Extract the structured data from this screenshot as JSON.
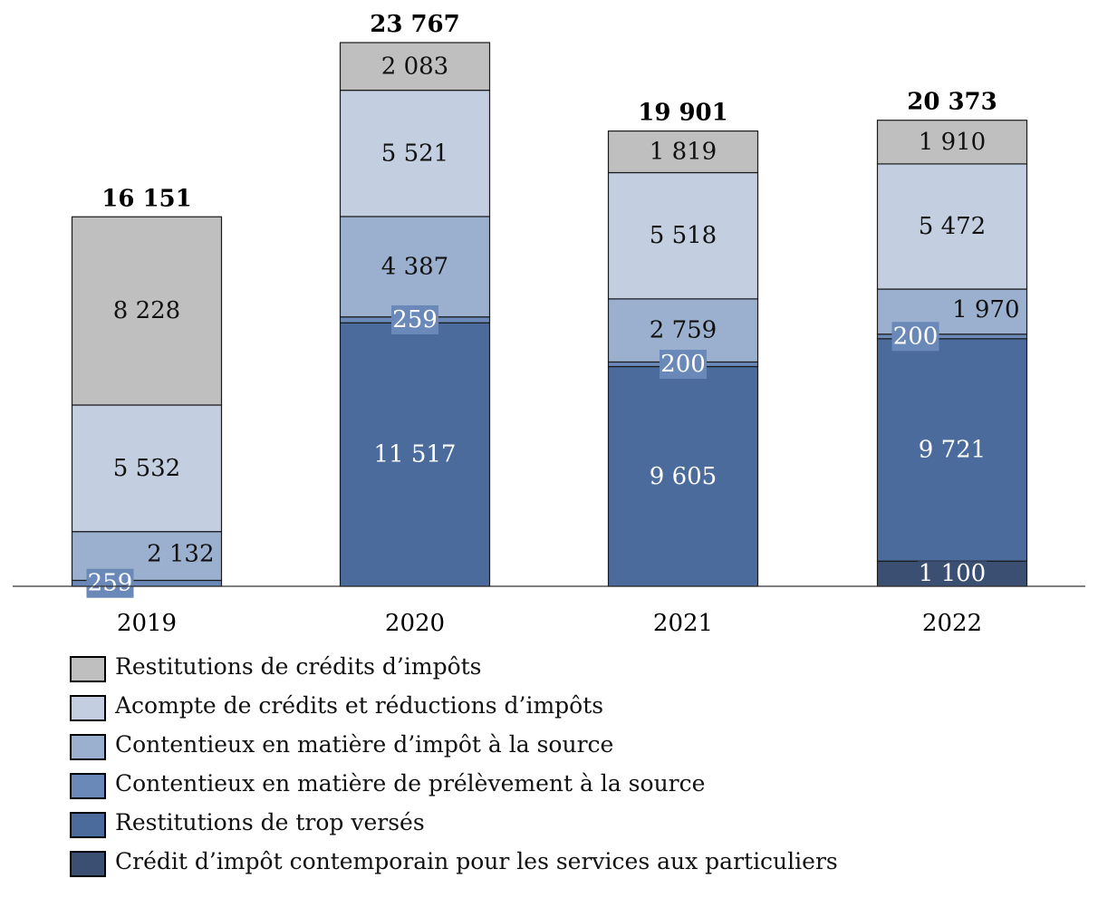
{
  "chart_data": {
    "type": "bar",
    "stacked": true,
    "categories": [
      "2019",
      "2020",
      "2021",
      "2022"
    ],
    "totals": [
      "16 151",
      "23 767",
      "19 901",
      "20 373"
    ],
    "ylim": [
      0,
      24500
    ],
    "grid": false,
    "legend_position": "bottom",
    "series": [
      {
        "name": "Crédit d’impôt contemporain pour les services aux particuliers",
        "color": "#3a4f72",
        "text_color": "#ffffff",
        "values": [
          0,
          0,
          0,
          1100
        ],
        "labels": [
          "",
          "",
          "",
          "1 100"
        ]
      },
      {
        "name": "Restitutions  de trop versés",
        "color": "#4a6b9c",
        "text_color": "#ffffff",
        "values": [
          0,
          11517,
          9605,
          9721
        ],
        "labels": [
          "",
          "11 517",
          "9 605",
          "9 721"
        ]
      },
      {
        "name": "Contentieux en matière de prélèvement à la source",
        "color": "#6a89b8",
        "text_color": "#ffffff",
        "values": [
          259,
          259,
          200,
          200
        ],
        "labels": [
          "259",
          "259",
          "200",
          "200"
        ]
      },
      {
        "name": "Contentieux en matière d’impôt à la source",
        "color": "#9bb0ce",
        "text_color": "#111111",
        "values": [
          2132,
          4387,
          2759,
          1970
        ],
        "labels": [
          "2 132",
          "4 387",
          "2 759",
          "1 970"
        ]
      },
      {
        "name": "Acompte de crédits et réductions d’impôts",
        "color": "#c3cfe0",
        "text_color": "#111111",
        "values": [
          5532,
          5521,
          5518,
          5472
        ],
        "labels": [
          "5 532",
          "5 521",
          "5 518",
          "5 472"
        ]
      },
      {
        "name": "Restitutions  de crédits d’impôts",
        "color": "#bfbfbf",
        "text_color": "#111111",
        "values": [
          8228,
          2083,
          1819,
          1910
        ],
        "labels": [
          "8 228",
          "2 083",
          "1 819",
          "1 910"
        ]
      }
    ]
  },
  "legend_order": [
    5,
    4,
    3,
    2,
    1,
    0
  ]
}
